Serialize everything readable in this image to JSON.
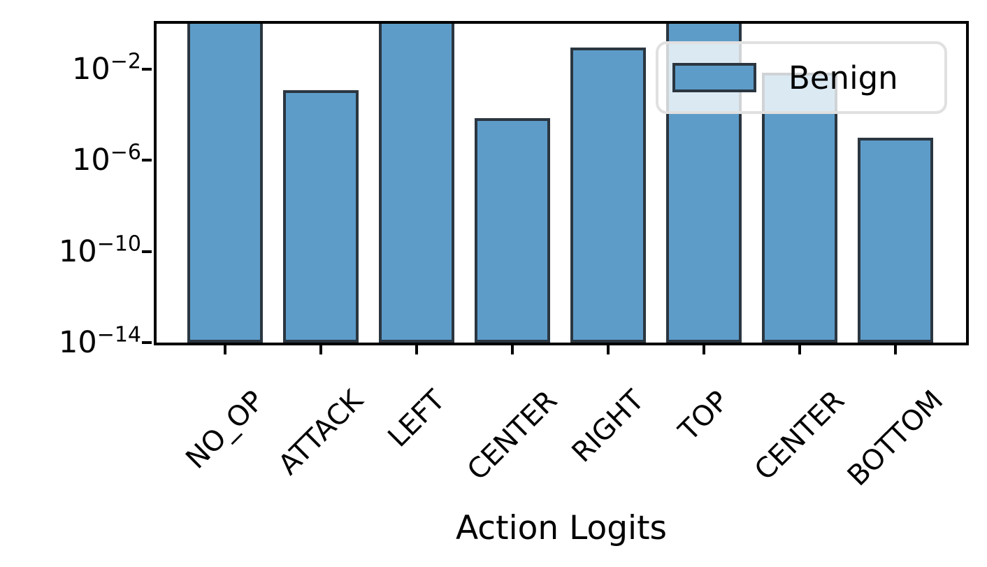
{
  "chart_data": {
    "type": "bar",
    "title": "",
    "xlabel": "Action Logits",
    "ylabel": "",
    "yscale": "log",
    "ylim": [
      1e-14,
      1
    ],
    "ytick_base": "10",
    "ytick_exponents": [
      -2,
      -6,
      -10,
      -14
    ],
    "categories": [
      "NO_OP",
      "ATTACK",
      "LEFT",
      "CENTER",
      "RIGHT",
      "TOP",
      "CENTER",
      "BOTTOM"
    ],
    "values": [
      1.0,
      0.0012,
      1.0,
      7e-05,
      0.09,
      1.0,
      0.007,
      1e-05
    ],
    "bars_clipped_at_top": [
      true,
      false,
      true,
      false,
      false,
      true,
      false,
      false
    ],
    "grid": false,
    "legend": {
      "label": "Benign",
      "position": "upper right"
    },
    "colors": {
      "bar_fill": "#5d9cc9",
      "bar_edge": "#2b3640",
      "axis": "#000000",
      "legend_border": "#e0e0e0"
    }
  }
}
